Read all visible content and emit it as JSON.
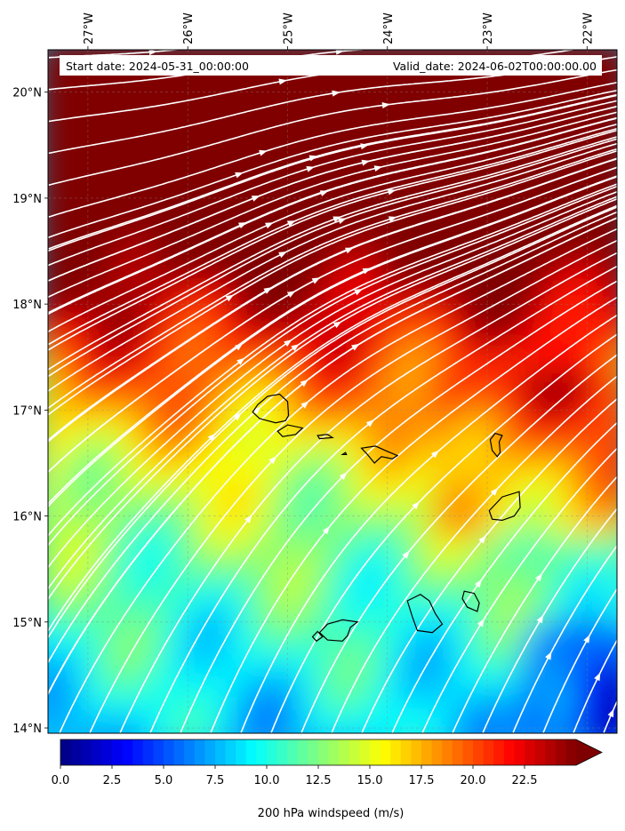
{
  "map": {
    "start_date_text": "Start date: 2024-05-31_00:00:00",
    "valid_date_text": "Valid_date: 2024-06-02T00:00:00.00",
    "lon_range": [
      -27.4,
      -21.7
    ],
    "lat_range": [
      13.95,
      20.4
    ],
    "lon_ticks": [
      {
        "value": -27,
        "label": "27°W"
      },
      {
        "value": -26,
        "label": "26°W"
      },
      {
        "value": -25,
        "label": "25°W"
      },
      {
        "value": -24,
        "label": "24°W"
      },
      {
        "value": -23,
        "label": "23°W"
      },
      {
        "value": -22,
        "label": "22°W"
      }
    ],
    "lat_ticks": [
      {
        "value": 20,
        "label": "20°N"
      },
      {
        "value": 19,
        "label": "19°N"
      },
      {
        "value": 18,
        "label": "18°N"
      },
      {
        "value": 17,
        "label": "17°N"
      },
      {
        "value": 16,
        "label": "16°N"
      },
      {
        "value": 15,
        "label": "15°N"
      },
      {
        "value": 14,
        "label": "14°N"
      }
    ],
    "gridlines": true,
    "coastline_color": "#000000",
    "streamline_color": "#ffffff",
    "islands": [
      [
        [
          -24.99,
          16.95
        ],
        [
          -25.02,
          16.9
        ],
        [
          -25.12,
          16.88
        ],
        [
          -25.28,
          16.92
        ],
        [
          -25.35,
          16.98
        ],
        [
          -25.3,
          17.05
        ],
        [
          -25.2,
          17.13
        ],
        [
          -25.08,
          17.15
        ],
        [
          -25.0,
          17.08
        ]
      ],
      [
        [
          -24.85,
          16.83
        ],
        [
          -24.92,
          16.77
        ],
        [
          -25.05,
          16.75
        ],
        [
          -25.1,
          16.8
        ],
        [
          -25.0,
          16.86
        ]
      ],
      [
        [
          -24.6,
          16.77
        ],
        [
          -24.55,
          16.74
        ],
        [
          -24.68,
          16.73
        ],
        [
          -24.7,
          16.76
        ]
      ],
      [
        [
          -24.45,
          16.58
        ],
        [
          -24.41,
          16.58
        ],
        [
          -24.42,
          16.6
        ]
      ],
      [
        [
          -23.95,
          16.54
        ],
        [
          -23.9,
          16.57
        ],
        [
          -24.0,
          16.61
        ],
        [
          -24.12,
          16.66
        ],
        [
          -24.26,
          16.64
        ],
        [
          -24.2,
          16.58
        ],
        [
          -24.13,
          16.5
        ],
        [
          -24.06,
          16.56
        ]
      ],
      [
        [
          -22.85,
          16.76
        ],
        [
          -22.92,
          16.78
        ],
        [
          -22.97,
          16.72
        ],
        [
          -22.95,
          16.62
        ],
        [
          -22.9,
          16.56
        ],
        [
          -22.87,
          16.6
        ],
        [
          -22.88,
          16.7
        ]
      ],
      [
        [
          -22.68,
          16.23
        ],
        [
          -22.85,
          16.18
        ],
        [
          -22.98,
          16.05
        ],
        [
          -22.95,
          15.97
        ],
        [
          -22.85,
          15.96
        ],
        [
          -22.73,
          16.0
        ],
        [
          -22.67,
          16.08
        ]
      ],
      [
        [
          -23.23,
          15.29
        ],
        [
          -23.13,
          15.27
        ],
        [
          -23.08,
          15.18
        ],
        [
          -23.1,
          15.1
        ],
        [
          -23.2,
          15.14
        ],
        [
          -23.25,
          15.22
        ]
      ],
      [
        [
          -23.67,
          15.26
        ],
        [
          -23.58,
          15.2
        ],
        [
          -23.52,
          15.08
        ],
        [
          -23.45,
          14.98
        ],
        [
          -23.55,
          14.9
        ],
        [
          -23.7,
          14.92
        ],
        [
          -23.75,
          15.05
        ],
        [
          -23.8,
          15.2
        ]
      ],
      [
        [
          -24.3,
          15.0
        ],
        [
          -24.37,
          14.95
        ],
        [
          -24.4,
          14.87
        ],
        [
          -24.45,
          14.82
        ],
        [
          -24.6,
          14.83
        ],
        [
          -24.68,
          14.9
        ],
        [
          -24.6,
          14.98
        ],
        [
          -24.45,
          15.02
        ]
      ],
      [
        [
          -24.65,
          14.86
        ],
        [
          -24.71,
          14.82
        ],
        [
          -24.75,
          14.86
        ],
        [
          -24.7,
          14.91
        ]
      ]
    ]
  },
  "colorbar": {
    "label": "200 hPa windspeed (m/s)",
    "min": 0,
    "max": 25,
    "extend": "max",
    "cmap": "jet",
    "ticks": [
      {
        "value": 0,
        "label": "0.0"
      },
      {
        "value": 2.5,
        "label": "2.5"
      },
      {
        "value": 5,
        "label": "5.0"
      },
      {
        "value": 7.5,
        "label": "7.5"
      },
      {
        "value": 10,
        "label": "10.0"
      },
      {
        "value": 12.5,
        "label": "12.5"
      },
      {
        "value": 15,
        "label": "15.0"
      },
      {
        "value": 17.5,
        "label": "17.5"
      },
      {
        "value": 20,
        "label": "20.0"
      },
      {
        "value": 22.5,
        "label": "22.5"
      }
    ]
  }
}
